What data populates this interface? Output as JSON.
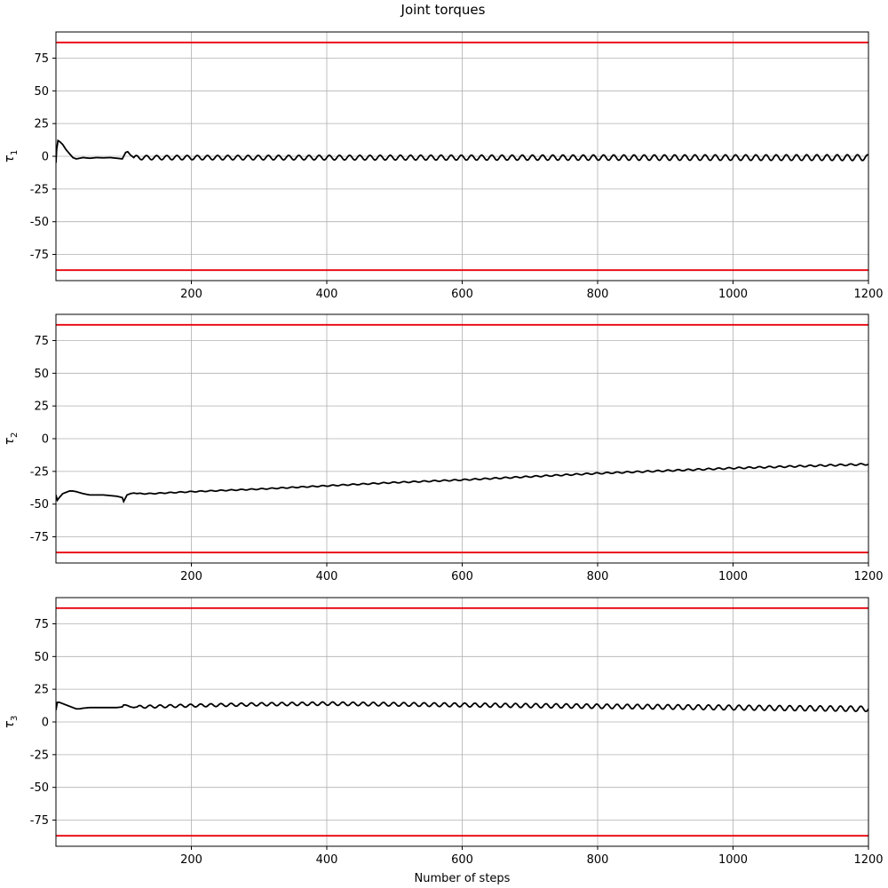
{
  "figure": {
    "title": "Joint torques"
  },
  "chart_data": [
    {
      "type": "line",
      "ylabel": "τ1",
      "ylabel_base": "τ",
      "ylabel_sub": "1",
      "xlabel": "",
      "xlim": [
        0,
        1200
      ],
      "ylim": [
        -95,
        95
      ],
      "xticks": [
        200,
        400,
        600,
        800,
        1000,
        1200
      ],
      "yticks": [
        -75,
        -50,
        -25,
        0,
        25,
        50,
        75
      ],
      "grid": true,
      "limits": {
        "upper": 87,
        "lower": -87,
        "color": "#e8000b"
      },
      "series": [
        {
          "color": "#000000",
          "x": [
            0,
            1,
            3,
            6,
            10,
            15,
            20,
            25,
            30,
            35,
            40,
            50,
            60,
            70,
            80,
            90,
            98,
            100,
            103,
            106,
            110,
            115
          ],
          "y": [
            -5,
            5,
            12,
            11,
            9,
            5,
            2,
            -1,
            -2,
            -1.5,
            -1,
            -1.5,
            -1,
            -1.2,
            -1,
            -1.5,
            -2,
            0,
            3,
            3.5,
            1,
            -1
          ],
          "oscillation": {
            "from": 115,
            "to": 1200,
            "period": 15,
            "center": 0,
            "amp_start": 1.6,
            "amp_end": 2.2
          }
        }
      ]
    },
    {
      "type": "line",
      "ylabel": "τ2",
      "ylabel_base": "τ",
      "ylabel_sub": "2",
      "xlabel": "",
      "xlim": [
        0,
        1200
      ],
      "ylim": [
        -95,
        95
      ],
      "xticks": [
        200,
        400,
        600,
        800,
        1000,
        1200
      ],
      "yticks": [
        -75,
        -50,
        -25,
        0,
        25,
        50,
        75
      ],
      "grid": true,
      "limits": {
        "upper": 87,
        "lower": -87,
        "color": "#e8000b"
      },
      "series": [
        {
          "color": "#000000",
          "x": [
            0,
            2,
            5,
            10,
            15,
            20,
            25,
            30,
            40,
            50,
            60,
            70,
            80,
            90,
            98,
            100,
            102,
            105,
            110,
            115,
            120,
            140,
            160,
            200,
            300,
            400,
            500,
            600,
            700,
            800,
            900,
            1000,
            1100,
            1200
          ],
          "y": [
            -43,
            -47,
            -45,
            -42,
            -41,
            -40,
            -40,
            -40.5,
            -42,
            -43,
            -43,
            -43,
            -43.5,
            -44,
            -45,
            -48,
            -46,
            -43,
            -42,
            -41.5,
            -42,
            -42,
            -41.5,
            -40.5,
            -38.5,
            -36,
            -33.5,
            -31.5,
            -29,
            -26.5,
            -24.5,
            -22.5,
            -21,
            -19.5
          ],
          "oscillation": {
            "from": 120,
            "to": 1200,
            "period": 15,
            "amp_start": 0.3,
            "amp_end": 0.6
          }
        }
      ]
    },
    {
      "type": "line",
      "ylabel": "τ3",
      "ylabel_base": "τ",
      "ylabel_sub": "3",
      "xlabel": "Number of steps",
      "xlim": [
        0,
        1200
      ],
      "ylim": [
        -95,
        95
      ],
      "xticks": [
        200,
        400,
        600,
        800,
        1000,
        1200
      ],
      "yticks": [
        -75,
        -50,
        -25,
        0,
        25,
        50,
        75
      ],
      "grid": true,
      "limits": {
        "upper": 87,
        "lower": -87,
        "color": "#e8000b"
      },
      "series": [
        {
          "color": "#000000",
          "x": [
            0,
            2,
            5,
            10,
            15,
            20,
            25,
            30,
            35,
            40,
            50,
            60,
            70,
            80,
            90,
            98,
            100,
            103,
            106,
            110,
            115,
            120,
            200,
            300,
            400,
            500,
            600,
            700,
            800,
            900,
            1000,
            1100,
            1200
          ],
          "y": [
            9,
            15,
            15,
            14,
            13,
            12,
            11,
            10,
            10,
            10.5,
            11,
            11,
            11,
            11,
            11,
            11.5,
            13,
            13,
            12.5,
            11.5,
            11,
            11.5,
            12.5,
            13.5,
            14,
            13.5,
            13,
            12.5,
            12,
            11.5,
            11,
            10.5,
            10
          ],
          "oscillation": {
            "from": 120,
            "to": 1200,
            "period": 15,
            "amp_start": 1.0,
            "amp_end": 2.0
          }
        }
      ]
    }
  ]
}
